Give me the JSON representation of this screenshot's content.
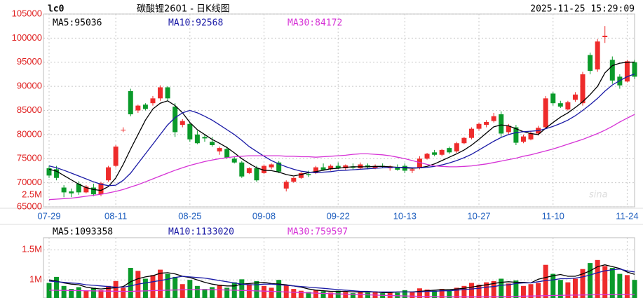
{
  "header": {
    "symbol": "lc0",
    "title": "碳酸锂2601 - 日K线图",
    "timestamp": "2025-11-25 15:29:09"
  },
  "watermark": "sina",
  "chart_data": [
    {
      "type": "candlestick",
      "categories": [
        "07-29",
        null,
        null,
        null,
        null,
        null,
        null,
        null,
        null,
        "08-11",
        null,
        null,
        null,
        null,
        null,
        null,
        null,
        null,
        null,
        "08-25",
        null,
        null,
        null,
        null,
        null,
        null,
        null,
        null,
        null,
        "09-08",
        null,
        null,
        null,
        null,
        null,
        null,
        null,
        null,
        null,
        "09-22",
        null,
        null,
        null,
        null,
        null,
        null,
        null,
        null,
        "10-13",
        null,
        null,
        null,
        null,
        null,
        null,
        null,
        null,
        null,
        "10-27",
        null,
        null,
        null,
        null,
        null,
        null,
        null,
        null,
        null,
        "11-10",
        null,
        null,
        null,
        null,
        null,
        null,
        null,
        null,
        null,
        "11-24",
        null
      ],
      "open": [
        73000,
        72800,
        69000,
        68200,
        69800,
        68000,
        69000,
        67600,
        70500,
        73500,
        81000,
        89000,
        85000,
        86200,
        86500,
        87500,
        89800,
        85800,
        82000,
        82200,
        80000,
        79500,
        78500,
        76500,
        77000,
        75000,
        74200,
        72000,
        73000,
        72000,
        73200,
        74200,
        68800,
        70200,
        71000,
        71800,
        72000,
        73200,
        72800,
        73500,
        73000,
        73400,
        73000,
        73600,
        73000,
        73500,
        73000,
        73300,
        73500,
        72500,
        73000,
        75000,
        76300,
        75800,
        77200,
        76500,
        78200,
        79300,
        81200,
        82000,
        82800,
        84200,
        80500,
        81500,
        78500,
        79000,
        80200,
        81500,
        88500,
        86500,
        85200,
        87200,
        86500,
        96500,
        93500,
        100200,
        95500,
        92000,
        91000,
        95000
      ],
      "high": [
        73500,
        73500,
        69500,
        68800,
        70300,
        69500,
        69800,
        70200,
        73500,
        77800,
        81500,
        89500,
        86200,
        86500,
        88000,
        90200,
        90000,
        86500,
        83200,
        82500,
        80800,
        80000,
        79500,
        77500,
        77500,
        75500,
        74500,
        73200,
        73500,
        73800,
        74000,
        74500,
        70500,
        71200,
        72200,
        72500,
        73500,
        74000,
        73800,
        74200,
        73800,
        74000,
        74200,
        74000,
        73800,
        74000,
        73600,
        73800,
        74000,
        73200,
        75500,
        76200,
        76800,
        77000,
        77500,
        78500,
        79500,
        81500,
        82500,
        83000,
        84500,
        84800,
        82200,
        82000,
        80000,
        80800,
        81800,
        88000,
        88800,
        87000,
        87000,
        88800,
        93000,
        97000,
        99800,
        102500,
        96200,
        92500,
        95500,
        95500
      ],
      "low": [
        71000,
        70500,
        67000,
        67000,
        67500,
        67800,
        67200,
        67200,
        70200,
        73200,
        80500,
        83800,
        84500,
        85000,
        86000,
        87000,
        87000,
        79500,
        81500,
        78500,
        78000,
        78500,
        77500,
        75800,
        75000,
        74000,
        71000,
        71800,
        70200,
        71800,
        72800,
        72000,
        68200,
        70000,
        70800,
        71200,
        71800,
        72500,
        72500,
        72800,
        72600,
        72800,
        72800,
        72800,
        72800,
        73000,
        72500,
        72500,
        72000,
        72000,
        72800,
        74800,
        75500,
        75500,
        76000,
        76200,
        78000,
        79000,
        80800,
        81500,
        82500,
        79500,
        80000,
        77800,
        78200,
        78800,
        79800,
        81200,
        86000,
        85500,
        85000,
        86800,
        86000,
        92500,
        93000,
        99000,
        90500,
        89500,
        90800,
        91500
      ],
      "close": [
        71500,
        71000,
        68000,
        67800,
        68000,
        69200,
        67600,
        69900,
        73200,
        77500,
        81000,
        84200,
        86000,
        85300,
        87500,
        89800,
        87500,
        80500,
        82800,
        79000,
        78200,
        79200,
        77800,
        77200,
        75200,
        74200,
        71300,
        73000,
        70500,
        73500,
        73800,
        72300,
        70200,
        71000,
        72000,
        71600,
        73200,
        72700,
        73500,
        73000,
        73600,
        73100,
        73800,
        73200,
        73500,
        73300,
        73400,
        72700,
        72500,
        72800,
        75000,
        76000,
        75800,
        76800,
        76300,
        78200,
        79300,
        81200,
        82200,
        82600,
        83800,
        80200,
        81800,
        78300,
        79600,
        80300,
        81400,
        87500,
        86500,
        85800,
        86700,
        88300,
        92500,
        93200,
        99300,
        100500,
        91200,
        90200,
        95200,
        92000
      ],
      "up_color": "#ee2b2b",
      "down_color": "#0a9a2a",
      "ylim": [
        65000,
        105000
      ],
      "yticks": [
        65000,
        70000,
        75000,
        80000,
        85000,
        90000,
        95000,
        100000,
        105000
      ],
      "grid": true,
      "overlay_label": "2.5M",
      "series": [
        {
          "name": "MA5:95036",
          "color": "#000000",
          "values": [
            72800,
            72400,
            71500,
            70600,
            69700,
            69000,
            68600,
            68400,
            69200,
            71000,
            73800,
            77000,
            80000,
            83000,
            85300,
            86500,
            87000,
            86000,
            84500,
            82500,
            81000,
            80000,
            79000,
            78200,
            77300,
            76200,
            75000,
            74000,
            73100,
            72600,
            72500,
            72200,
            71700,
            71400,
            71700,
            72100,
            72300,
            72600,
            72900,
            73000,
            73200,
            73300,
            73300,
            73300,
            73400,
            73400,
            73300,
            73200,
            73100,
            73000,
            73100,
            73400,
            73900,
            74600,
            75300,
            76000,
            76800,
            77800,
            79000,
            80300,
            81600,
            82000,
            81800,
            81200,
            80600,
            80200,
            80000,
            81300,
            82500,
            83600,
            84500,
            85600,
            86800,
            88300,
            90000,
            92800,
            94300,
            94800,
            95000,
            95036
          ]
        },
        {
          "name": "MA10:92568",
          "color": "#1a1aa6",
          "values": [
            73500,
            73100,
            72600,
            72000,
            71400,
            70800,
            70200,
            69700,
            69400,
            69500,
            70500,
            72000,
            74000,
            76000,
            78000,
            80000,
            82000,
            83500,
            84500,
            85000,
            84500,
            83800,
            83000,
            82000,
            81000,
            80000,
            78800,
            77500,
            76500,
            75500,
            74600,
            73900,
            73300,
            72800,
            72400,
            72200,
            72100,
            72200,
            72300,
            72500,
            72600,
            72700,
            72800,
            72900,
            73000,
            73100,
            73200,
            73200,
            73200,
            73100,
            73100,
            73200,
            73400,
            73700,
            74100,
            74600,
            75200,
            75900,
            76800,
            77700,
            78600,
            79400,
            80000,
            80400,
            80600,
            80700,
            80800,
            81200,
            81700,
            82300,
            83000,
            83900,
            85000,
            86200,
            87500,
            89000,
            90300,
            91200,
            92000,
            92568
          ]
        },
        {
          "name": "MA30:84172",
          "color": "#d633d6",
          "values": [
            66500,
            66600,
            66700,
            66800,
            67000,
            67200,
            67400,
            67600,
            67900,
            68200,
            68600,
            69100,
            69600,
            70200,
            70800,
            71400,
            72000,
            72600,
            73100,
            73600,
            74000,
            74400,
            74700,
            75000,
            75200,
            75400,
            75500,
            75600,
            75600,
            75600,
            75600,
            75600,
            75500,
            75500,
            75400,
            75400,
            75300,
            75400,
            75500,
            75600,
            75700,
            75900,
            76000,
            76000,
            75900,
            75800,
            75600,
            75300,
            75000,
            74600,
            74200,
            73800,
            73500,
            73400,
            73300,
            73300,
            73400,
            73500,
            73700,
            73900,
            74200,
            74500,
            74800,
            75100,
            75500,
            75800,
            76200,
            76600,
            77000,
            77500,
            78000,
            78500,
            79000,
            79600,
            80200,
            80900,
            81700,
            82600,
            83400,
            84172
          ]
        }
      ]
    },
    {
      "type": "volume",
      "values": [
        950000,
        1050000,
        900000,
        850000,
        880000,
        820000,
        870000,
        830000,
        900000,
        980000,
        870000,
        1200000,
        1150000,
        1020000,
        1080000,
        1170000,
        1100000,
        1050000,
        930000,
        1000000,
        900000,
        850000,
        880000,
        920000,
        870000,
        960000,
        1010000,
        930000,
        980000,
        900000,
        870000,
        1000000,
        910000,
        850000,
        820000,
        800000,
        830000,
        810000,
        790000,
        820000,
        800000,
        780000,
        800000,
        790000,
        810000,
        780000,
        800000,
        790000,
        830000,
        800000,
        860000,
        840000,
        820000,
        850000,
        830000,
        870000,
        900000,
        950000,
        920000,
        960000,
        980000,
        1020000,
        940000,
        990000,
        900000,
        930000,
        950000,
        1250000,
        1100000,
        1000000,
        960000,
        1020000,
        1180000,
        1280000,
        1330000,
        1230000,
        1200000,
        1100000,
        1080000,
        1000000
      ],
      "ylim": [
        700000,
        1700000
      ],
      "yticks": [
        {
          "value": 1000000,
          "label": "1M"
        },
        {
          "value": 1500000,
          "label": "1.5M"
        }
      ],
      "grid": true,
      "series": [
        {
          "name": "MA5:1093358",
          "color": "#000000",
          "values": [
            1000000,
            980000,
            950000,
            930000,
            920000,
            880000,
            860000,
            850000,
            860000,
            870000,
            890000,
            970000,
            1020000,
            1050000,
            1070000,
            1110000,
            1120000,
            1100000,
            1060000,
            1040000,
            1000000,
            960000,
            930000,
            910000,
            900000,
            900000,
            930000,
            940000,
            950000,
            960000,
            940000,
            930000,
            920000,
            900000,
            880000,
            850000,
            830000,
            820000,
            810000,
            810000,
            810000,
            800000,
            800000,
            800000,
            800000,
            790000,
            790000,
            800000,
            800000,
            800000,
            810000,
            820000,
            830000,
            840000,
            840000,
            850000,
            860000,
            880000,
            900000,
            920000,
            940000,
            960000,
            970000,
            960000,
            960000,
            950000,
            1010000,
            1040000,
            1070000,
            1090000,
            1060000,
            1060000,
            1100000,
            1150000,
            1220000,
            1250000,
            1220000,
            1190000,
            1130000,
            1093358
          ]
        },
        {
          "name": "MA10:1133020",
          "color": "#1a1aa6",
          "values": [
            980000,
            970000,
            960000,
            950000,
            940000,
            920000,
            910000,
            900000,
            890000,
            880000,
            880000,
            900000,
            930000,
            950000,
            970000,
            990000,
            1010000,
            1040000,
            1060000,
            1050000,
            1040000,
            1030000,
            1010000,
            990000,
            970000,
            950000,
            930000,
            920000,
            920000,
            930000,
            930000,
            920000,
            910000,
            900000,
            890000,
            880000,
            870000,
            860000,
            850000,
            840000,
            830000,
            820000,
            810000,
            810000,
            800000,
            800000,
            800000,
            800000,
            800000,
            800000,
            800000,
            810000,
            810000,
            820000,
            820000,
            830000,
            840000,
            850000,
            860000,
            880000,
            890000,
            910000,
            920000,
            940000,
            950000,
            950000,
            970000,
            990000,
            1000000,
            1020000,
            1020000,
            1030000,
            1050000,
            1080000,
            1120000,
            1150000,
            1170000,
            1180000,
            1150000,
            1133020
          ]
        },
        {
          "name": "MA30:759597",
          "color": "#d633d6",
          "values": [
            830000,
            828000,
            826000,
            824000,
            822000,
            820000,
            818000,
            816000,
            814000,
            812000,
            810000,
            811000,
            814000,
            818000,
            822000,
            826000,
            830000,
            833000,
            836000,
            838000,
            838000,
            838000,
            837000,
            835000,
            832000,
            829000,
            826000,
            822000,
            818000,
            814000,
            810000,
            805000,
            800000,
            795000,
            790000,
            785000,
            780000,
            776000,
            772000,
            768000,
            764000,
            760000,
            756000,
            752000,
            748000,
            744000,
            740000,
            737000,
            734000,
            731000,
            728000,
            726000,
            724000,
            722000,
            721000,
            720000,
            720000,
            720000,
            721000,
            722000,
            723000,
            724000,
            726000,
            728000,
            730000,
            732000,
            735000,
            738000,
            741000,
            744000,
            746000,
            748000,
            750000,
            752000,
            754000,
            755000,
            756000,
            757000,
            758000,
            759597
          ]
        }
      ]
    }
  ]
}
